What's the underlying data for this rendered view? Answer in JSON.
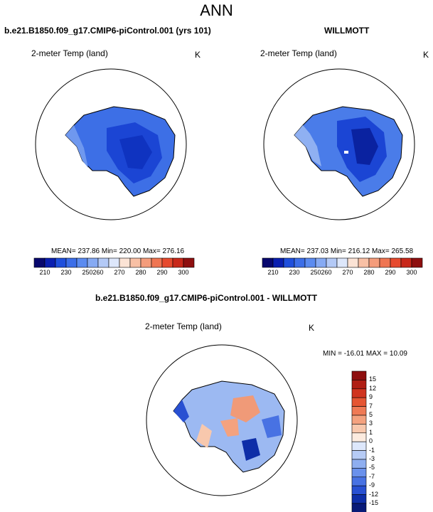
{
  "title": "ANN",
  "panels": {
    "left_title": "b.e21.B1850.f09_g17.CMIP6-piControl.001 (yrs 101)",
    "right_title": "WILLMOTT",
    "diff_title": "b.e21.B1850.f09_g17.CMIP6-piControl.001 - WILLMOTT",
    "variable": "2-meter Temp (land)",
    "units": "K",
    "left_stats": "MEAN= 237.86  Min= 220.00  Max= 276.16",
    "right_stats": "MEAN= 237.03  Min= 216.12  Max= 265.58",
    "diff_stats": "MIN = -16.01 MAX =  10.09"
  },
  "chart_data": [
    {
      "type": "heatmap",
      "name": "model",
      "title": "b.e21.B1850.f09_g17.CMIP6-piControl.001 (yrs 101)",
      "variable": "2-meter Temp (land)",
      "units": "K",
      "mean": 237.86,
      "min": 220.0,
      "max": 276.16,
      "colorbar_levels": [
        210,
        230,
        250,
        260,
        270,
        280,
        290,
        300
      ],
      "colorbar_colors": [
        "#08086e",
        "#0a1fb0",
        "#1f4fdc",
        "#3c6ee8",
        "#5b8bf0",
        "#86aaf3",
        "#b3c9f6",
        "#dde7fb",
        "#fbe3d5",
        "#f8c0a5",
        "#f49c7b",
        "#ef7552",
        "#e64a2e",
        "#c8281a",
        "#8e0f0f"
      ]
    },
    {
      "type": "heatmap",
      "name": "obs",
      "title": "WILLMOTT",
      "variable": "2-meter Temp (land)",
      "units": "K",
      "mean": 237.03,
      "min": 216.12,
      "max": 265.58,
      "colorbar_levels": [
        210,
        230,
        250,
        260,
        270,
        280,
        290,
        300
      ]
    },
    {
      "type": "heatmap",
      "name": "difference",
      "title": "b.e21.B1850.f09_g17.CMIP6-piControl.001 - WILLMOTT",
      "variable": "2-meter Temp (land)",
      "units": "K",
      "min": -16.01,
      "max": 10.09,
      "colorbar_levels": [
        "15",
        "12",
        "9",
        "7",
        "5",
        "3",
        "1",
        "0",
        "-1",
        "-3",
        "-5",
        "-7",
        "-9",
        "-12",
        "-15"
      ],
      "colorbar_colors": [
        "#8e0f0f",
        "#b01e14",
        "#d0341f",
        "#e55532",
        "#ef7a55",
        "#f4a27f",
        "#f8c8ad",
        "#fcebdf",
        "#dde7fb",
        "#b6cbf5",
        "#8eaef0",
        "#6a91ec",
        "#4872e3",
        "#2850d2",
        "#0e2ea8",
        "#081a78"
      ]
    }
  ]
}
